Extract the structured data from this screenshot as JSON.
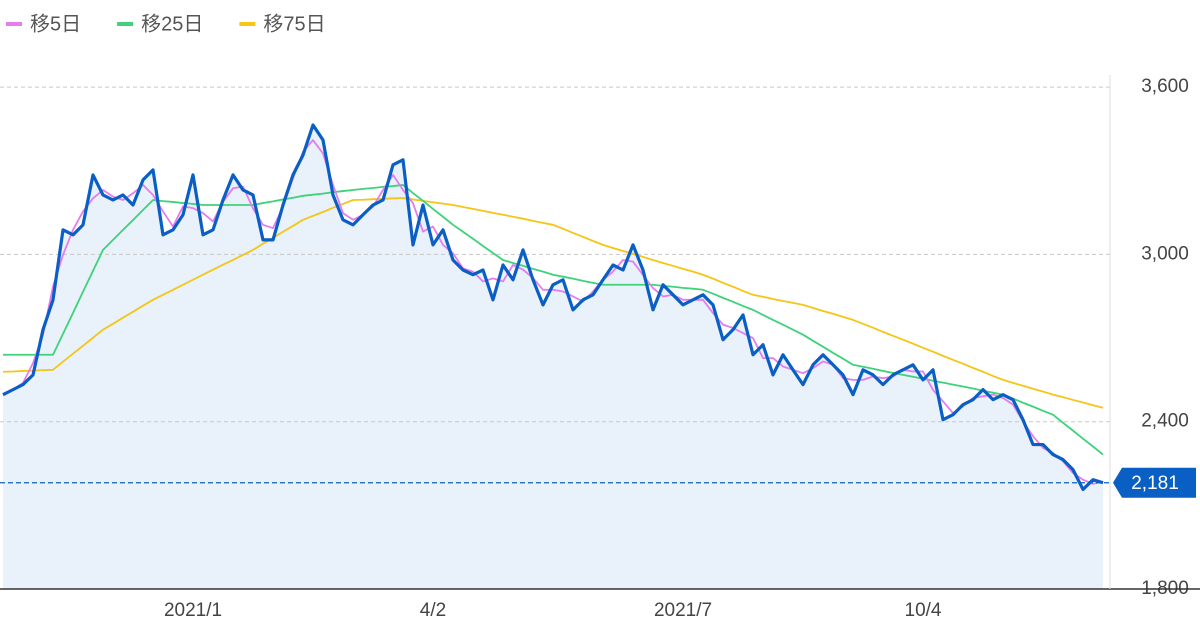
{
  "chart_data": {
    "type": "line",
    "legend": "top-left",
    "grid": true,
    "ylim": [
      1800,
      3715
    ],
    "yticks": [
      {
        "value": 1800,
        "label": "1,800"
      },
      {
        "value": 2400,
        "label": "2,400"
      },
      {
        "value": 3000,
        "label": "3,000"
      },
      {
        "value": 3600,
        "label": "3,600"
      }
    ],
    "categories": [
      null,
      null,
      null,
      null,
      null,
      null,
      null,
      null,
      null,
      null,
      null,
      null,
      null,
      null,
      null,
      null,
      null,
      null,
      null,
      "2021/1",
      null,
      null,
      null,
      null,
      null,
      null,
      null,
      null,
      null,
      null,
      null,
      null,
      null,
      null,
      null,
      null,
      null,
      null,
      null,
      null,
      null,
      null,
      null,
      "4/2",
      null,
      null,
      null,
      null,
      null,
      null,
      null,
      null,
      null,
      null,
      null,
      null,
      null,
      null,
      null,
      null,
      null,
      null,
      null,
      null,
      null,
      null,
      null,
      null,
      "2021/7",
      null,
      null,
      null,
      null,
      null,
      null,
      null,
      null,
      null,
      null,
      null,
      null,
      null,
      null,
      null,
      null,
      null,
      null,
      null,
      null,
      null,
      null,
      null,
      "10/4",
      null,
      null,
      null,
      null,
      null,
      null,
      null,
      null,
      null,
      null,
      null,
      null,
      null,
      null,
      null,
      null,
      null,
      null
    ],
    "color": "#0a5fc4",
    "area_color": "#e9f1fa",
    "values": [
      2497,
      2515,
      2533,
      2568,
      2730,
      2837,
      3088,
      3070,
      3106,
      3285,
      3213,
      3195,
      3213,
      3177,
      3267,
      3303,
      3070,
      3088,
      3142,
      3285,
      3070,
      3088,
      3195,
      3285,
      3231,
      3213,
      3052,
      3052,
      3177,
      3285,
      3356,
      3464,
      3410,
      3213,
      3124,
      3106,
      3142,
      3177,
      3195,
      3321,
      3339,
      3034,
      3177,
      3034,
      3088,
      2980,
      2944,
      2927,
      2944,
      2837,
      2962,
      2909,
      3016,
      2909,
      2819,
      2891,
      2909,
      2801,
      2837,
      2855,
      2909,
      2962,
      2944,
      3034,
      2944,
      2801,
      2891,
      2855,
      2819,
      2837,
      2855,
      2819,
      2694,
      2730,
      2783,
      2640,
      2676,
      2568,
      2640,
      2586,
      2533,
      2604,
      2640,
      2604,
      2568,
      2497,
      2586,
      2568,
      2533,
      2568,
      2586,
      2604,
      2550,
      2586,
      2407,
      2425,
      2461,
      2479,
      2515,
      2479,
      2497,
      2479,
      2407,
      2318,
      2318,
      2282,
      2264,
      2228,
      2157,
      2192,
      2181
    ],
    "current_price": {
      "value": 2181,
      "label": "2,181"
    },
    "series": [
      {
        "name": "移5日",
        "color": "#e57cf0",
        "values": [
          2500,
          2515,
          2539,
          2610,
          2712,
          2885,
          2998,
          3088,
          3154,
          3201,
          3231,
          3207,
          3195,
          3219,
          3249,
          3213,
          3154,
          3100,
          3172,
          3166,
          3148,
          3118,
          3189,
          3237,
          3243,
          3165,
          3106,
          3094,
          3171,
          3273,
          3368,
          3410,
          3362,
          3249,
          3148,
          3124,
          3142,
          3171,
          3231,
          3285,
          3231,
          3183,
          3082,
          3100,
          3034,
          3004,
          2950,
          2938,
          2903,
          2914,
          2903,
          2962,
          2945,
          2915,
          2873,
          2873,
          2867,
          2849,
          2831,
          2867,
          2909,
          2938,
          2980,
          2974,
          2926,
          2879,
          2849,
          2855,
          2837,
          2837,
          2837,
          2789,
          2748,
          2736,
          2718,
          2700,
          2628,
          2628,
          2598,
          2586,
          2574,
          2592,
          2616,
          2604,
          2556,
          2550,
          2550,
          2562,
          2556,
          2562,
          2586,
          2580,
          2580,
          2514,
          2473,
          2431,
          2455,
          2485,
          2491,
          2497,
          2485,
          2461,
          2401,
          2348,
          2306,
          2288,
          2258,
          2216,
          2192,
          2177,
          2185
        ]
      },
      {
        "name": "移25日",
        "color": "#3ed27a",
        "values": [
          2640,
          2640,
          2640,
          2640,
          2640,
          2640,
          2715,
          2790,
          2866,
          2941,
          3016,
          3052,
          3088,
          3123,
          3159,
          3195,
          3191,
          3188,
          3184,
          3181,
          3177,
          3177,
          3177,
          3177,
          3177,
          3177,
          3184,
          3190,
          3197,
          3203,
          3210,
          3214,
          3218,
          3223,
          3227,
          3231,
          3235,
          3238,
          3242,
          3245,
          3249,
          3220,
          3192,
          3163,
          3135,
          3106,
          3081,
          3056,
          3030,
          3005,
          2980,
          2969,
          2959,
          2948,
          2938,
          2927,
          2920,
          2913,
          2905,
          2898,
          2891,
          2891,
          2891,
          2891,
          2891,
          2891,
          2887,
          2884,
          2880,
          2877,
          2873,
          2859,
          2844,
          2830,
          2815,
          2801,
          2783,
          2765,
          2748,
          2730,
          2712,
          2690,
          2669,
          2647,
          2626,
          2604,
          2597,
          2590,
          2582,
          2575,
          2568,
          2561,
          2554,
          2547,
          2540,
          2533,
          2526,
          2519,
          2511,
          2504,
          2497,
          2483,
          2468,
          2454,
          2439,
          2425,
          2396,
          2368,
          2339,
          2311,
          2282
        ]
      },
      {
        "name": "移75日",
        "color": "#f5c518",
        "values": [
          2579,
          2580,
          2582,
          2583,
          2585,
          2586,
          2615,
          2644,
          2672,
          2701,
          2730,
          2751,
          2773,
          2794,
          2816,
          2837,
          2855,
          2873,
          2891,
          2909,
          2927,
          2945,
          2963,
          2980,
          2998,
          3016,
          3038,
          3059,
          3081,
          3102,
          3124,
          3138,
          3152,
          3167,
          3181,
          3195,
          3196,
          3198,
          3199,
          3201,
          3202,
          3197,
          3192,
          3187,
          3182,
          3177,
          3170,
          3163,
          3156,
          3149,
          3142,
          3135,
          3128,
          3120,
          3113,
          3106,
          3092,
          3077,
          3063,
          3048,
          3034,
          3023,
          3012,
          3002,
          2991,
          2980,
          2969,
          2959,
          2948,
          2938,
          2927,
          2913,
          2898,
          2884,
          2869,
          2855,
          2848,
          2840,
          2833,
          2826,
          2819,
          2808,
          2797,
          2787,
          2776,
          2765,
          2751,
          2737,
          2722,
          2708,
          2694,
          2680,
          2665,
          2651,
          2636,
          2622,
          2608,
          2593,
          2579,
          2564,
          2550,
          2539,
          2529,
          2518,
          2508,
          2497,
          2488,
          2478,
          2469,
          2459,
          2450
        ]
      }
    ]
  }
}
